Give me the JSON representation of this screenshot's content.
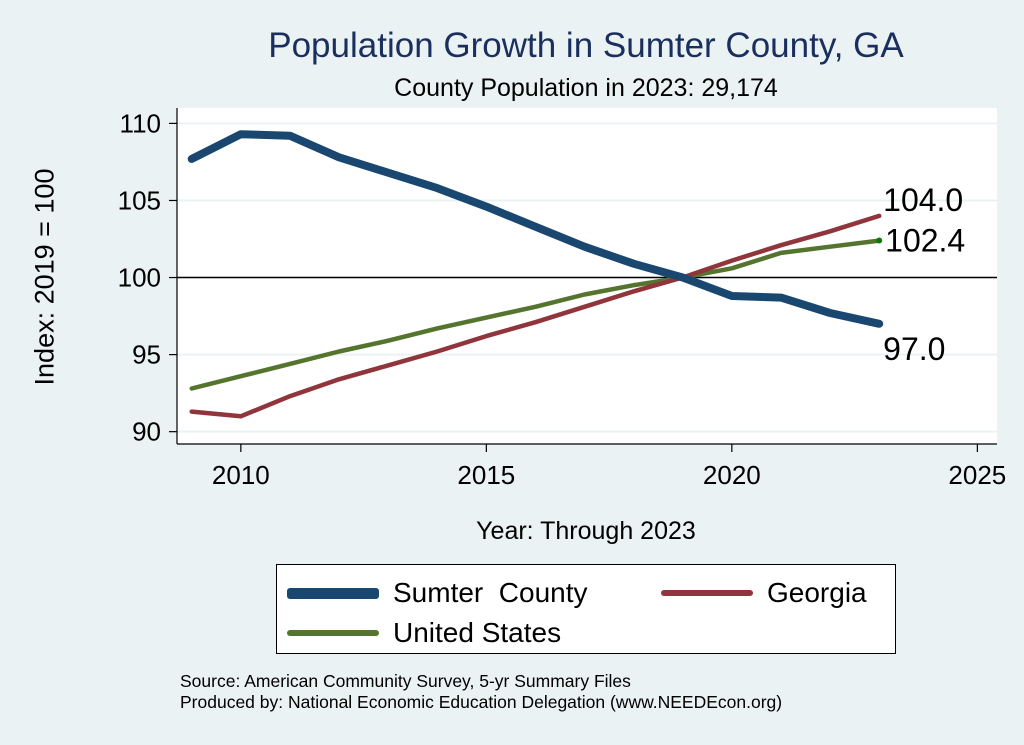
{
  "chart_data": {
    "type": "line",
    "title": "Population Growth in Sumter County, GA",
    "subtitle": "County Population in 2023: 29,174",
    "xlabel": "Year: Through 2023",
    "ylabel": "Index: 2019 = 100",
    "xlim": [
      2008.7,
      2025.4
    ],
    "ylim": [
      89.2,
      111
    ],
    "xticks": [
      2010,
      2015,
      2020,
      2025
    ],
    "yticks": [
      90,
      95,
      100,
      105,
      110
    ],
    "reference_line": 100,
    "grid": true,
    "legend_position": "bottom",
    "x": [
      2009,
      2010,
      2011,
      2012,
      2013,
      2014,
      2015,
      2016,
      2017,
      2018,
      2019,
      2020,
      2021,
      2022,
      2023
    ],
    "series": [
      {
        "name": "Sumter  County",
        "color": "#1a476f",
        "values": [
          107.7,
          109.3,
          109.2,
          107.8,
          106.8,
          105.8,
          104.6,
          103.3,
          102.0,
          100.9,
          100.0,
          98.8,
          98.7,
          97.7,
          97.0
        ],
        "end_label": "97.0"
      },
      {
        "name": "Georgia",
        "color": "#90353b",
        "values": [
          91.3,
          91.0,
          92.3,
          93.4,
          94.3,
          95.2,
          96.2,
          97.1,
          98.1,
          99.1,
          100.0,
          101.1,
          102.1,
          103.0,
          104.0
        ],
        "end_label": "104.0"
      },
      {
        "name": "United States",
        "color": "#55752f",
        "values": [
          92.8,
          93.6,
          94.4,
          95.2,
          95.9,
          96.7,
          97.4,
          98.1,
          98.9,
          99.5,
          100.0,
          100.6,
          101.6,
          102.0,
          102.4
        ],
        "end_label": "102.4"
      }
    ]
  },
  "source_lines": [
    "Source: American Community Survey, 5-yr Summary Files",
    "Produced by: National Economic Education Delegation (www.NEEDEcon.org)"
  ]
}
